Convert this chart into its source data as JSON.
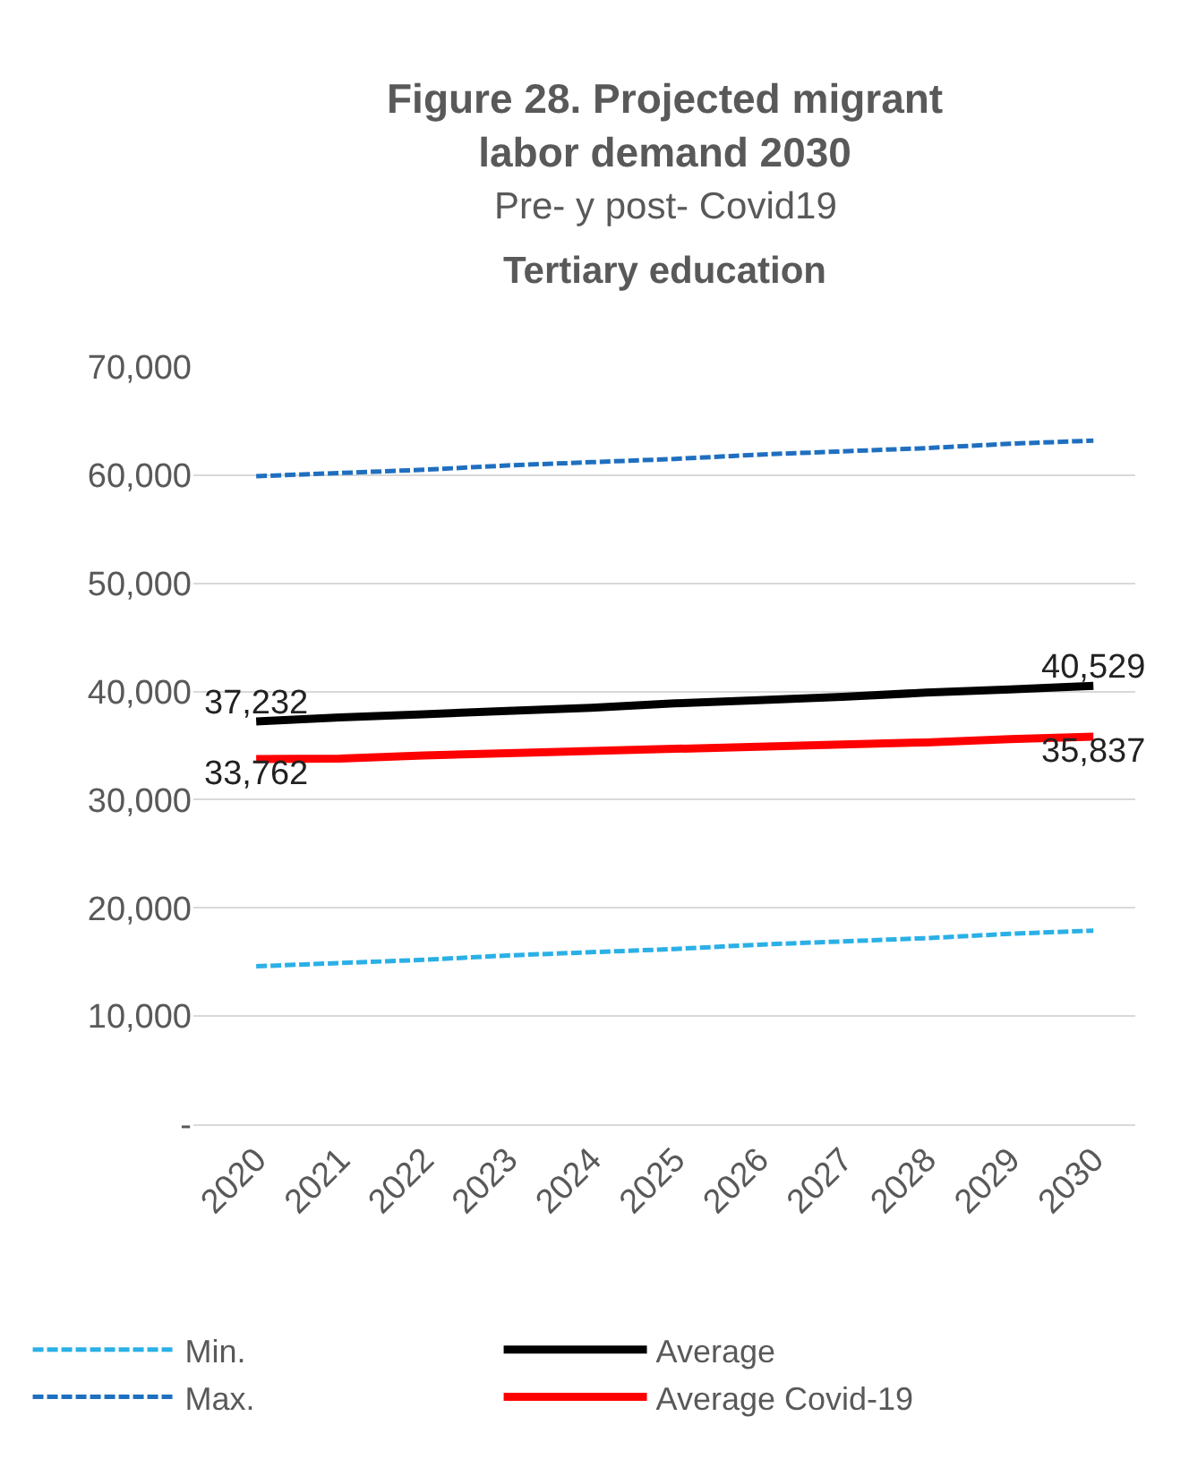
{
  "chart_data": {
    "type": "line",
    "title": "Figure 28. Projected migrant labor demand 2030",
    "subtitle": "Pre- y post- Covid19",
    "annotations": [
      "Tertiary education"
    ],
    "categories": [
      "2020",
      "2021",
      "2022",
      "2023",
      "2024",
      "2025",
      "2026",
      "2027",
      "2028",
      "2029",
      "2030"
    ],
    "series": [
      {
        "name": "Min.",
        "color": "#2ab0e6",
        "line_style": "dashed",
        "values": [
          14600,
          14900,
          15200,
          15600,
          15900,
          16200,
          16600,
          16900,
          17200,
          17600,
          17900
        ]
      },
      {
        "name": "Average",
        "color": "#000000",
        "line_style": "solid",
        "values": [
          37232,
          37600,
          37900,
          38200,
          38500,
          38900,
          39200,
          39500,
          39900,
          40200,
          40529
        ],
        "value_labels": [
          "37,232",
          null,
          null,
          null,
          null,
          null,
          null,
          null,
          null,
          null,
          "40,529"
        ]
      },
      {
        "name": "Max.",
        "color": "#1f6fc0",
        "line_style": "dashed",
        "values": [
          59900,
          60200,
          60500,
          60900,
          61200,
          61500,
          61900,
          62200,
          62500,
          62900,
          63200
        ]
      },
      {
        "name": "Average Covid-19",
        "color": "#ff0000",
        "line_style": "solid",
        "values": [
          33762,
          33800,
          34100,
          34300,
          34500,
          34700,
          34900,
          35100,
          35300,
          35600,
          35837
        ],
        "value_labels": [
          "33,762",
          null,
          null,
          null,
          null,
          null,
          null,
          null,
          null,
          null,
          "35,837"
        ]
      }
    ],
    "ylim": [
      0,
      70000
    ],
    "yticks": [
      {
        "value": 0,
        "label": "-"
      },
      {
        "value": 10000,
        "label": "10,000"
      },
      {
        "value": 20000,
        "label": "20,000"
      },
      {
        "value": 30000,
        "label": "30,000"
      },
      {
        "value": 40000,
        "label": "40,000"
      },
      {
        "value": 50000,
        "label": "50,000"
      },
      {
        "value": 60000,
        "label": "60,000"
      },
      {
        "value": 70000,
        "label": "70,000"
      }
    ],
    "grid": "y",
    "legend": "bottom"
  }
}
